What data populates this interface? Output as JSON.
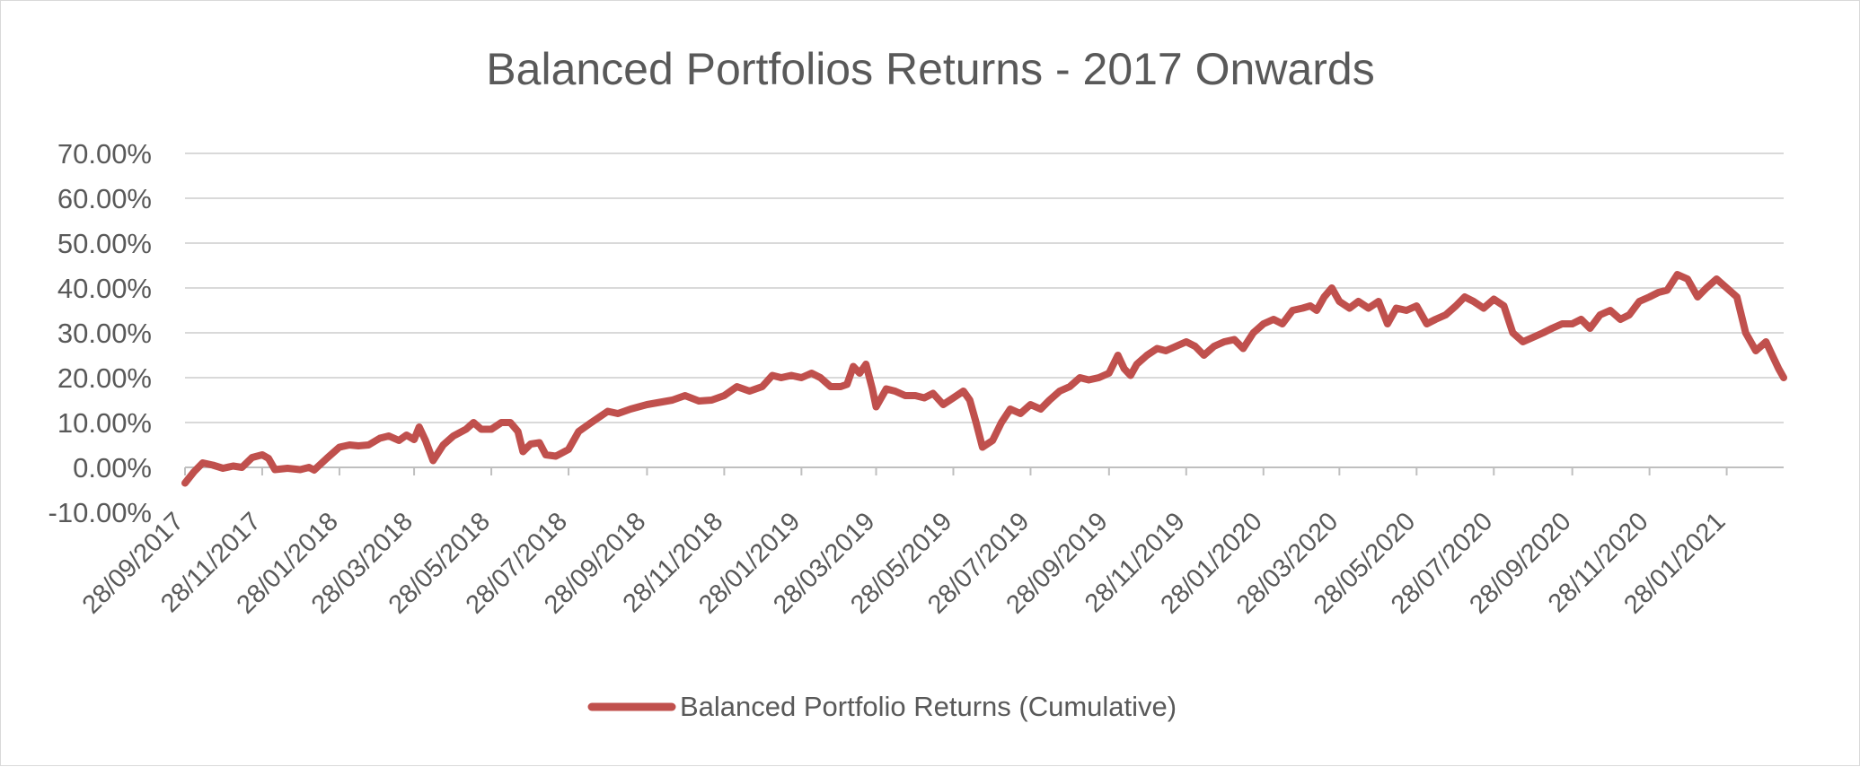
{
  "chart_data": {
    "type": "line",
    "title": "Balanced Portfolios Returns - 2017 Onwards",
    "xlabel": "",
    "ylabel": "",
    "ylim": [
      -0.1,
      0.7
    ],
    "y_ticks": [
      "-10.00%",
      "0.00%",
      "10.00%",
      "20.00%",
      "30.00%",
      "40.00%",
      "50.00%",
      "60.00%",
      "70.00%"
    ],
    "x_ticks": [
      "28/09/2017",
      "28/11/2017",
      "28/01/2018",
      "28/03/2018",
      "28/05/2018",
      "28/07/2018",
      "28/09/2018",
      "28/11/2018",
      "28/01/2019",
      "28/03/2019",
      "28/05/2019",
      "28/07/2019",
      "28/09/2019",
      "28/11/2019",
      "28/01/2020",
      "28/03/2020",
      "28/05/2020",
      "28/07/2020",
      "28/09/2020",
      "28/11/2020",
      "28/01/2021"
    ],
    "x_range": [
      "28/09/2017",
      "14/03/2021"
    ],
    "grid": true,
    "legend_position": "bottom",
    "series_color": "#c0504d",
    "series": [
      {
        "name": "Balanced Portfolio Returns (Cumulative)",
        "points": [
          [
            "28/09/2017",
            -0.035
          ],
          [
            "05/10/2017",
            -0.01
          ],
          [
            "12/10/2017",
            0.01
          ],
          [
            "20/10/2017",
            0.005
          ],
          [
            "28/10/2017",
            -0.002
          ],
          [
            "05/11/2017",
            0.003
          ],
          [
            "12/11/2017",
            0.0
          ],
          [
            "20/11/2017",
            0.022
          ],
          [
            "28/11/2017",
            0.028
          ],
          [
            "03/12/2017",
            0.02
          ],
          [
            "08/12/2017",
            -0.005
          ],
          [
            "18/12/2017",
            -0.002
          ],
          [
            "28/12/2017",
            -0.005
          ],
          [
            "04/01/2018",
            0.0
          ],
          [
            "08/01/2018",
            -0.006
          ],
          [
            "18/01/2018",
            0.02
          ],
          [
            "28/01/2018",
            0.045
          ],
          [
            "05/02/2018",
            0.05
          ],
          [
            "12/02/2018",
            0.048
          ],
          [
            "20/02/2018",
            0.05
          ],
          [
            "01/03/2018",
            0.065
          ],
          [
            "08/03/2018",
            0.07
          ],
          [
            "16/03/2018",
            0.06
          ],
          [
            "22/03/2018",
            0.072
          ],
          [
            "28/03/2018",
            0.062
          ],
          [
            "01/04/2018",
            0.09
          ],
          [
            "06/04/2018",
            0.06
          ],
          [
            "12/04/2018",
            0.015
          ],
          [
            "20/04/2018",
            0.05
          ],
          [
            "28/04/2018",
            0.07
          ],
          [
            "08/05/2018",
            0.085
          ],
          [
            "14/05/2018",
            0.1
          ],
          [
            "20/05/2018",
            0.085
          ],
          [
            "28/05/2018",
            0.085
          ],
          [
            "05/06/2018",
            0.1
          ],
          [
            "12/06/2018",
            0.1
          ],
          [
            "18/06/2018",
            0.08
          ],
          [
            "22/06/2018",
            0.035
          ],
          [
            "28/06/2018",
            0.052
          ],
          [
            "05/07/2018",
            0.055
          ],
          [
            "10/07/2018",
            0.028
          ],
          [
            "18/07/2018",
            0.025
          ],
          [
            "28/07/2018",
            0.04
          ],
          [
            "05/08/2018",
            0.08
          ],
          [
            "15/08/2018",
            0.1
          ],
          [
            "28/08/2018",
            0.125
          ],
          [
            "05/09/2018",
            0.12
          ],
          [
            "15/09/2018",
            0.13
          ],
          [
            "28/09/2018",
            0.14
          ],
          [
            "08/10/2018",
            0.145
          ],
          [
            "18/10/2018",
            0.15
          ],
          [
            "28/10/2018",
            0.16
          ],
          [
            "08/11/2018",
            0.148
          ],
          [
            "18/11/2018",
            0.15
          ],
          [
            "28/11/2018",
            0.16
          ],
          [
            "08/12/2018",
            0.18
          ],
          [
            "18/12/2018",
            0.17
          ],
          [
            "28/12/2018",
            0.18
          ],
          [
            "05/01/2019",
            0.205
          ],
          [
            "12/01/2019",
            0.2
          ],
          [
            "20/01/2019",
            0.205
          ],
          [
            "28/01/2019",
            0.2
          ],
          [
            "05/02/2019",
            0.21
          ],
          [
            "12/02/2019",
            0.2
          ],
          [
            "20/02/2019",
            0.18
          ],
          [
            "28/02/2019",
            0.18
          ],
          [
            "05/03/2019",
            0.185
          ],
          [
            "10/03/2019",
            0.225
          ],
          [
            "15/03/2019",
            0.21
          ],
          [
            "20/03/2019",
            0.23
          ],
          [
            "25/03/2019",
            0.175
          ],
          [
            "28/03/2019",
            0.135
          ],
          [
            "05/04/2019",
            0.175
          ],
          [
            "12/04/2019",
            0.17
          ],
          [
            "20/04/2019",
            0.16
          ],
          [
            "28/04/2019",
            0.16
          ],
          [
            "05/05/2019",
            0.155
          ],
          [
            "12/05/2019",
            0.165
          ],
          [
            "20/05/2019",
            0.14
          ],
          [
            "28/05/2019",
            0.155
          ],
          [
            "05/06/2019",
            0.17
          ],
          [
            "10/06/2019",
            0.15
          ],
          [
            "15/06/2019",
            0.1
          ],
          [
            "20/06/2019",
            0.045
          ],
          [
            "28/06/2019",
            0.06
          ],
          [
            "05/07/2019",
            0.1
          ],
          [
            "12/07/2019",
            0.13
          ],
          [
            "20/07/2019",
            0.12
          ],
          [
            "28/07/2019",
            0.14
          ],
          [
            "05/08/2019",
            0.13
          ],
          [
            "12/08/2019",
            0.15
          ],
          [
            "20/08/2019",
            0.17
          ],
          [
            "28/08/2019",
            0.18
          ],
          [
            "05/09/2019",
            0.2
          ],
          [
            "12/09/2019",
            0.195
          ],
          [
            "20/09/2019",
            0.2
          ],
          [
            "28/09/2019",
            0.21
          ],
          [
            "05/10/2019",
            0.25
          ],
          [
            "10/10/2019",
            0.22
          ],
          [
            "15/10/2019",
            0.205
          ],
          [
            "20/10/2019",
            0.23
          ],
          [
            "28/10/2019",
            0.25
          ],
          [
            "05/11/2019",
            0.265
          ],
          [
            "12/11/2019",
            0.26
          ],
          [
            "20/11/2019",
            0.27
          ],
          [
            "28/11/2019",
            0.28
          ],
          [
            "05/12/2019",
            0.27
          ],
          [
            "12/12/2019",
            0.25
          ],
          [
            "20/12/2019",
            0.27
          ],
          [
            "28/12/2019",
            0.28
          ],
          [
            "05/01/2020",
            0.285
          ],
          [
            "12/01/2020",
            0.265
          ],
          [
            "20/01/2020",
            0.3
          ],
          [
            "28/01/2020",
            0.32
          ],
          [
            "05/02/2020",
            0.33
          ],
          [
            "12/02/2020",
            0.32
          ],
          [
            "20/02/2020",
            0.35
          ],
          [
            "28/02/2020",
            0.355
          ],
          [
            "05/03/2020",
            0.36
          ],
          [
            "10/03/2020",
            0.35
          ],
          [
            "16/03/2020",
            0.38
          ],
          [
            "22/03/2020",
            0.4
          ],
          [
            "28/03/2020",
            0.37
          ],
          [
            "05/04/2020",
            0.355
          ],
          [
            "12/04/2020",
            0.37
          ],
          [
            "20/04/2020",
            0.355
          ],
          [
            "28/04/2020",
            0.37
          ],
          [
            "05/05/2020",
            0.32
          ],
          [
            "12/05/2020",
            0.355
          ],
          [
            "20/05/2020",
            0.35
          ],
          [
            "28/05/2020",
            0.36
          ],
          [
            "05/06/2020",
            0.32
          ],
          [
            "12/06/2020",
            0.33
          ],
          [
            "20/06/2020",
            0.34
          ],
          [
            "28/06/2020",
            0.36
          ],
          [
            "05/07/2020",
            0.38
          ],
          [
            "12/07/2020",
            0.37
          ],
          [
            "20/07/2020",
            0.355
          ],
          [
            "28/07/2020",
            0.375
          ],
          [
            "05/08/2020",
            0.36
          ],
          [
            "12/08/2020",
            0.3
          ],
          [
            "20/08/2020",
            0.28
          ],
          [
            "28/08/2020",
            0.29
          ],
          [
            "05/09/2020",
            0.3
          ],
          [
            "12/09/2020",
            0.31
          ],
          [
            "20/09/2020",
            0.32
          ],
          [
            "28/09/2020",
            0.32
          ],
          [
            "05/10/2020",
            0.33
          ],
          [
            "12/10/2020",
            0.31
          ],
          [
            "20/10/2020",
            0.34
          ],
          [
            "28/10/2020",
            0.35
          ],
          [
            "05/11/2020",
            0.33
          ],
          [
            "12/11/2020",
            0.34
          ],
          [
            "20/11/2020",
            0.37
          ],
          [
            "28/11/2020",
            0.38
          ],
          [
            "05/12/2020",
            0.39
          ],
          [
            "12/12/2020",
            0.395
          ],
          [
            "20/12/2020",
            0.43
          ],
          [
            "28/12/2020",
            0.42
          ],
          [
            "05/01/2021",
            0.38
          ],
          [
            "12/01/2021",
            0.4
          ],
          [
            "20/01/2021",
            0.42
          ],
          [
            "28/01/2021",
            0.4
          ],
          [
            "05/02/2021",
            0.38
          ],
          [
            "12/02/2021",
            0.3
          ],
          [
            "20/02/2021",
            0.26
          ],
          [
            "28/02/2021",
            0.28
          ],
          [
            "05/03/2021",
            0.25
          ],
          [
            "10/03/2021",
            0.22
          ],
          [
            "14/03/2021",
            0.2
          ]
        ]
      }
    ]
  }
}
